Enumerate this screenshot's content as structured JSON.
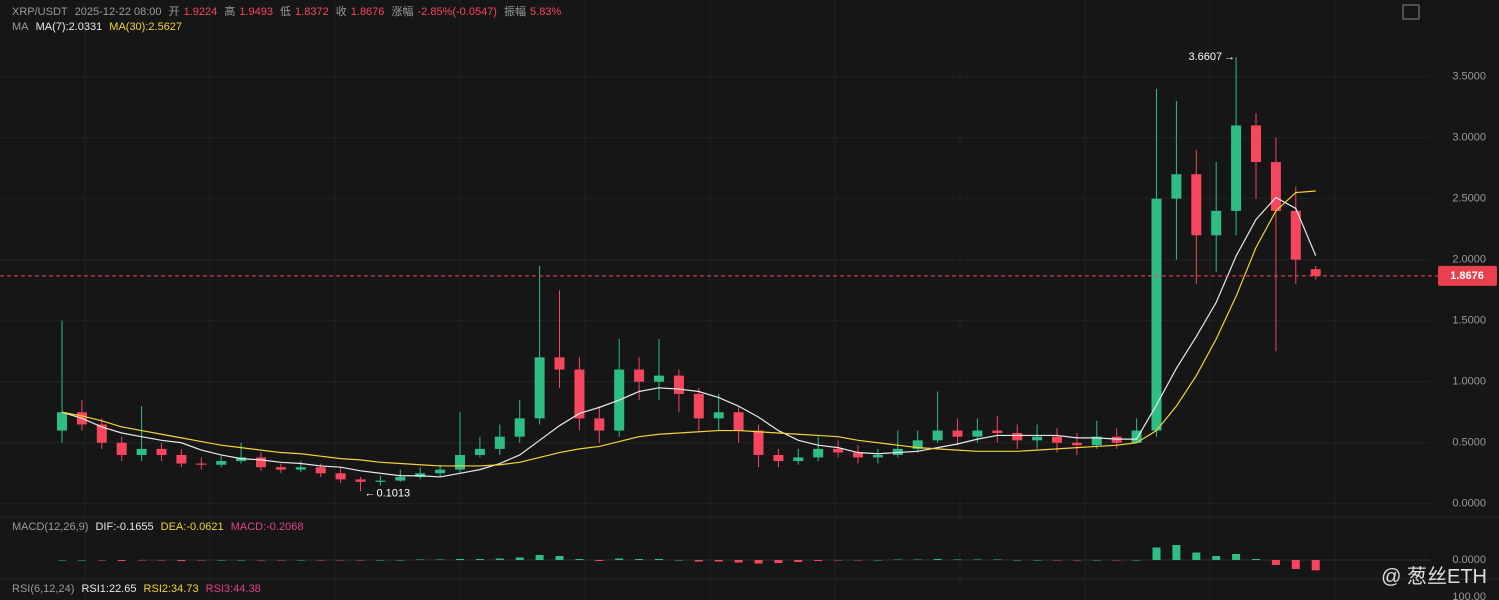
{
  "header": {
    "symbol": "XRP/USDT",
    "time": "2025-12-22 08:00",
    "open_label": "开",
    "open": "1.9224",
    "high_label": "高",
    "high": "1.9493",
    "low_label": "低",
    "low": "1.8372",
    "close_label": "收",
    "close": "1.8676",
    "change_label": "涨幅",
    "change": "-2.85%(-0.0547)",
    "amp_label": "振幅",
    "amp": "5.83%"
  },
  "ma_header": {
    "name": "MA",
    "ma7": "MA(7):2.0331",
    "ma30": "MA(30):2.5627"
  },
  "macd_header": {
    "name": "MACD(12,26,9)",
    "dif": "DIF:-0.1655",
    "dea": "DEA:-0.0621",
    "macd": "MACD:-0.2068"
  },
  "rsi_header": {
    "name": "RSI(6,12,24)",
    "rsi1": "RSI1:22.65",
    "rsi2": "RSI2:34.73",
    "rsi3": "RSI3:44.38"
  },
  "watermark": "@ 葱丝ETH",
  "chart_data": {
    "type": "candlestick",
    "up_color": "#2ebd85",
    "down_color": "#f6465d",
    "open": [
      0.6,
      0.75,
      0.65,
      0.5,
      0.4,
      0.45,
      0.4,
      0.33,
      0.32,
      0.35,
      0.38,
      0.3,
      0.28,
      0.3,
      0.25,
      0.2,
      0.18,
      0.19,
      0.22,
      0.25,
      0.28,
      0.4,
      0.45,
      0.55,
      0.7,
      1.2,
      1.1,
      0.7,
      0.6,
      1.1,
      1.0,
      1.05,
      0.9,
      0.7,
      0.75,
      0.6,
      0.4,
      0.35,
      0.38,
      0.45,
      0.42,
      0.38,
      0.4,
      0.45,
      0.52,
      0.6,
      0.55,
      0.6,
      0.58,
      0.52,
      0.55,
      0.5,
      0.48,
      0.55,
      0.5,
      0.6,
      2.5,
      2.7,
      2.2,
      2.4,
      3.1,
      2.8,
      2.4,
      1.9224
    ],
    "high": [
      1.5,
      0.85,
      0.7,
      0.55,
      0.8,
      0.5,
      0.45,
      0.38,
      0.4,
      0.5,
      0.42,
      0.33,
      0.35,
      0.33,
      0.3,
      0.22,
      0.23,
      0.28,
      0.3,
      0.32,
      0.75,
      0.55,
      0.65,
      0.85,
      1.95,
      1.75,
      1.2,
      0.8,
      1.35,
      1.2,
      1.35,
      1.1,
      0.95,
      0.9,
      0.8,
      0.65,
      0.45,
      0.45,
      0.55,
      0.52,
      0.48,
      0.45,
      0.6,
      0.6,
      0.92,
      0.7,
      0.7,
      0.72,
      0.65,
      0.65,
      0.62,
      0.58,
      0.68,
      0.62,
      0.7,
      3.4,
      3.3,
      2.9,
      2.8,
      3.6607,
      3.2,
      3.0,
      2.6,
      1.9493
    ],
    "low": [
      0.5,
      0.6,
      0.45,
      0.35,
      0.35,
      0.35,
      0.3,
      0.28,
      0.3,
      0.33,
      0.27,
      0.25,
      0.26,
      0.22,
      0.17,
      0.1013,
      0.15,
      0.18,
      0.2,
      0.22,
      0.25,
      0.38,
      0.4,
      0.5,
      0.65,
      0.95,
      0.6,
      0.5,
      0.55,
      0.85,
      0.85,
      0.75,
      0.6,
      0.6,
      0.5,
      0.3,
      0.3,
      0.32,
      0.35,
      0.38,
      0.33,
      0.33,
      0.38,
      0.42,
      0.5,
      0.48,
      0.5,
      0.5,
      0.45,
      0.45,
      0.42,
      0.4,
      0.45,
      0.45,
      0.5,
      0.55,
      2.0,
      1.8,
      1.9,
      2.2,
      2.5,
      1.25,
      1.8,
      1.8372
    ],
    "close": [
      0.75,
      0.65,
      0.5,
      0.4,
      0.45,
      0.4,
      0.33,
      0.32,
      0.35,
      0.38,
      0.3,
      0.28,
      0.3,
      0.25,
      0.2,
      0.18,
      0.19,
      0.22,
      0.25,
      0.28,
      0.4,
      0.45,
      0.55,
      0.7,
      1.2,
      1.1,
      0.7,
      0.6,
      1.1,
      1.0,
      1.05,
      0.9,
      0.7,
      0.75,
      0.6,
      0.4,
      0.35,
      0.38,
      0.45,
      0.42,
      0.38,
      0.4,
      0.45,
      0.52,
      0.6,
      0.55,
      0.6,
      0.58,
      0.52,
      0.55,
      0.5,
      0.48,
      0.55,
      0.5,
      0.6,
      2.5,
      2.7,
      2.2,
      2.4,
      3.1,
      2.8,
      2.4,
      2.0,
      1.8676
    ],
    "series": [
      {
        "name": "MA(7)",
        "color": "#e8e8e8",
        "values": [
          0.75,
          0.7,
          0.63,
          0.58,
          0.55,
          0.52,
          0.5,
          0.44,
          0.4,
          0.37,
          0.36,
          0.34,
          0.33,
          0.31,
          0.3,
          0.27,
          0.25,
          0.23,
          0.23,
          0.22,
          0.25,
          0.28,
          0.33,
          0.4,
          0.52,
          0.64,
          0.74,
          0.79,
          0.85,
          0.92,
          0.95,
          0.94,
          0.92,
          0.87,
          0.8,
          0.71,
          0.6,
          0.52,
          0.48,
          0.46,
          0.42,
          0.41,
          0.42,
          0.43,
          0.46,
          0.49,
          0.53,
          0.56,
          0.56,
          0.56,
          0.56,
          0.54,
          0.54,
          0.53,
          0.53,
          0.81,
          1.11,
          1.37,
          1.65,
          2.03,
          2.33,
          2.51,
          2.42,
          2.0331
        ]
      },
      {
        "name": "MA(30)",
        "color": "#f0d43a",
        "values": [
          0.75,
          0.72,
          0.68,
          0.63,
          0.6,
          0.57,
          0.54,
          0.51,
          0.48,
          0.46,
          0.44,
          0.42,
          0.41,
          0.39,
          0.37,
          0.36,
          0.34,
          0.33,
          0.32,
          0.31,
          0.31,
          0.31,
          0.32,
          0.34,
          0.38,
          0.42,
          0.45,
          0.47,
          0.51,
          0.55,
          0.57,
          0.58,
          0.59,
          0.6,
          0.6,
          0.59,
          0.58,
          0.57,
          0.56,
          0.55,
          0.52,
          0.5,
          0.48,
          0.46,
          0.45,
          0.44,
          0.43,
          0.43,
          0.43,
          0.44,
          0.45,
          0.46,
          0.47,
          0.48,
          0.5,
          0.6,
          0.8,
          1.05,
          1.35,
          1.7,
          2.1,
          2.4,
          2.55,
          2.5627
        ]
      }
    ],
    "ylim": [
      -0.1,
      3.8
    ],
    "yticks": [
      {
        "value": 0,
        "label": "0.0000"
      },
      {
        "value": 0.5,
        "label": "0.5000"
      },
      {
        "value": 1,
        "label": "1.0000"
      },
      {
        "value": 1.5,
        "label": "1.5000"
      },
      {
        "value": 2,
        "label": "2.0000"
      },
      {
        "value": 2.5,
        "label": "2.5000"
      },
      {
        "value": 3,
        "label": "3.0000"
      },
      {
        "value": 3.5,
        "label": "3.5000"
      }
    ],
    "last_price": {
      "value": 1.8676,
      "label": "1.8676"
    },
    "macd_hist": [
      0,
      0,
      -0.01,
      -0.02,
      -0.01,
      -0.01,
      -0.02,
      -0.01,
      0,
      0,
      -0.01,
      -0.01,
      0,
      -0.01,
      -0.01,
      -0.01,
      0,
      0,
      0.01,
      0.01,
      0.02,
      0.02,
      0.03,
      0.05,
      0.1,
      0.08,
      0.02,
      -0.02,
      0.03,
      0.02,
      0.02,
      0,
      -0.03,
      -0.03,
      -0.05,
      -0.07,
      -0.06,
      -0.04,
      -0.02,
      -0.01,
      -0.01,
      0,
      0.01,
      0.01,
      0.02,
      0.01,
      0.01,
      0.01,
      0,
      0,
      -0.01,
      -0.01,
      0,
      -0.01,
      0,
      0.25,
      0.3,
      0.15,
      0.08,
      0.12,
      0.02,
      -0.1,
      -0.18,
      -0.2068
    ],
    "macd_ylim": [
      -0.3,
      0.4
    ],
    "macd_yticks": [
      {
        "value": 0,
        "label": "0.0000"
      }
    ],
    "rsi_yticks": [
      {
        "value": 100,
        "label": "100.00"
      }
    ],
    "rsi_ylim": [
      0,
      100
    ]
  }
}
